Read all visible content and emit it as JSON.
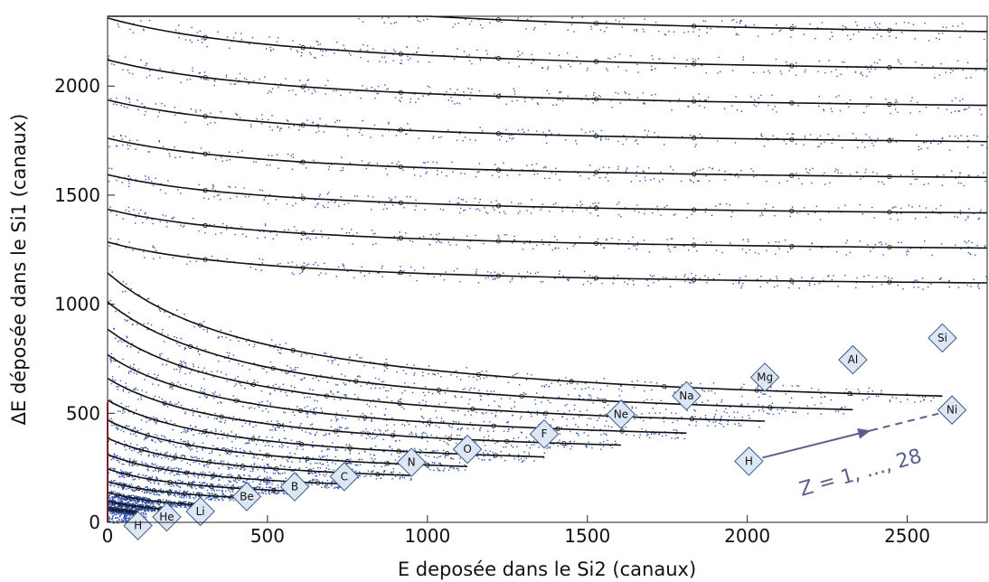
{
  "chart_data": {
    "type": "scatter",
    "title": "",
    "xlabel": "E deposée dans le Si2 (canaux)",
    "ylabel": "ΔE déposée dans le Si1 (canaux)",
    "xlim": [
      0,
      2750
    ],
    "ylim": [
      0,
      2320
    ],
    "xticks": [
      0,
      500,
      1000,
      1500,
      2000,
      2500
    ],
    "yticks": [
      0,
      500,
      1000,
      1500,
      2000
    ],
    "grid": false,
    "point_color": "#2f55b5",
    "line_color": "#111111",
    "marker_fill": "#dde6f3",
    "marker_stroke": "#3a5a8a",
    "series": [
      {
        "name": "H",
        "label_x": 95,
        "label_y": -15
      },
      {
        "name": "He",
        "label_x": 185,
        "label_y": 25
      },
      {
        "name": "Li",
        "label_x": 290,
        "label_y": 50
      },
      {
        "name": "Be",
        "label_x": 435,
        "label_y": 118
      },
      {
        "name": "B",
        "label_x": 585,
        "label_y": 163
      },
      {
        "name": "C",
        "label_x": 740,
        "label_y": 210
      },
      {
        "name": "N",
        "label_x": 950,
        "label_y": 275
      },
      {
        "name": "O",
        "label_x": 1125,
        "label_y": 335
      },
      {
        "name": "F",
        "label_x": 1365,
        "label_y": 405
      },
      {
        "name": "Ne",
        "label_x": 1605,
        "label_y": 495
      },
      {
        "name": "Na",
        "label_x": 1810,
        "label_y": 580
      },
      {
        "name": "Mg",
        "label_x": 2055,
        "label_y": 665
      },
      {
        "name": "Al",
        "label_x": 2330,
        "label_y": 745
      },
      {
        "name": "Si",
        "label_x": 2610,
        "label_y": 845
      }
    ],
    "annotations": {
      "start_label": "H",
      "end_label": "Ni",
      "range_text": "Z = 1, …, 28",
      "start_x": 2005,
      "start_y": 280,
      "end_x": 2640,
      "end_y": 515
    }
  }
}
